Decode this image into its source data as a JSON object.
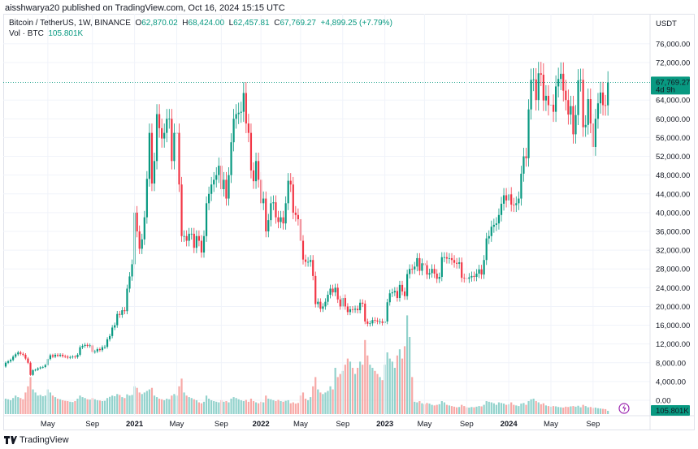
{
  "header": {
    "published": "aisshwarya20 published on TradingView.com, Oct 16, 2024 15:15 UTC"
  },
  "legend": {
    "symbol": "Bitcoin / TetherUS, 1W, BINANCE",
    "o_label": "O",
    "o": "62,870.02",
    "h_label": "H",
    "h": "68,424.00",
    "l_label": "L",
    "l": "62,457.81",
    "c_label": "C",
    "c": "67,769.27",
    "change": "+4,899.25 (+7.79%)",
    "vol_label": "Vol · BTC",
    "vol": "105.801K"
  },
  "price_axis": {
    "currency": "USDT",
    "ticks": [
      "76,000.00",
      "72,000.00",
      "64,000.00",
      "60,000.00",
      "56,000.00",
      "52,000.00",
      "48,000.00",
      "44,000.00",
      "40,000.00",
      "36,000.00",
      "32,000.00",
      "28,000.00",
      "24,000.00",
      "20,000.00",
      "16,000.00",
      "12,000.00",
      "8,000.00",
      "4,000.00",
      "0.00"
    ],
    "last_price": "67,769.27",
    "countdown": "4d 9h",
    "last_volume": "105.801K"
  },
  "time_axis": {
    "ticks": [
      {
        "label": "May",
        "month": "2020-05",
        "bold": false
      },
      {
        "label": "Sep",
        "month": "2020-09",
        "bold": false
      },
      {
        "label": "2021",
        "month": "2021-01",
        "bold": true
      },
      {
        "label": "May",
        "month": "2021-05",
        "bold": false
      },
      {
        "label": "Sep",
        "month": "2021-09",
        "bold": false
      },
      {
        "label": "2022",
        "month": "2022-01",
        "bold": true
      },
      {
        "label": "May",
        "month": "2022-05",
        "bold": false
      },
      {
        "label": "Sep",
        "month": "2022-09",
        "bold": false
      },
      {
        "label": "2023",
        "month": "2023-01",
        "bold": true
      },
      {
        "label": "May",
        "month": "2023-05",
        "bold": false
      },
      {
        "label": "Sep",
        "month": "2023-09",
        "bold": false
      },
      {
        "label": "2024",
        "month": "2024-01",
        "bold": true
      },
      {
        "label": "May",
        "month": "2024-05",
        "bold": false
      },
      {
        "label": "Sep",
        "month": "2024-09",
        "bold": false
      }
    ]
  },
  "colors": {
    "up": "#089981",
    "down": "#f23645",
    "up_vol": "#92d2cc",
    "down_vol": "#f7a9a7",
    "grid": "#f0f3fa",
    "accent": "#089981",
    "lightning": "#9c27b0"
  },
  "footer": {
    "brand": "TradingView",
    "logo_icon": "tradingview-logo"
  },
  "chart_data": {
    "type": "candlestick",
    "symbol": "BTCUSDT",
    "interval": "1W",
    "ylim": [
      0,
      78000
    ],
    "grid": true,
    "weekly_close_k_usdt": {
      "2020-01": [
        8.0,
        8.3,
        8.6,
        9.3
      ],
      "2020-02": [
        9.8,
        10.2,
        9.9,
        9.7
      ],
      "2020-03": [
        8.9,
        8.0,
        5.4,
        6.4,
        6.5
      ],
      "2020-04": [
        6.8,
        7.0,
        7.1,
        7.5
      ],
      "2020-05": [
        8.8,
        9.6,
        9.3,
        9.7
      ],
      "2020-06": [
        9.5,
        9.7,
        9.4,
        9.3,
        9.1
      ],
      "2020-07": [
        9.2,
        9.3,
        9.2,
        9.7
      ],
      "2020-08": [
        11.3,
        11.6,
        11.8,
        11.6,
        11.7
      ],
      "2020-09": [
        10.3,
        10.4,
        10.9,
        10.7
      ],
      "2020-10": [
        11.3,
        11.4,
        13.0,
        13.7
      ],
      "2020-11": [
        15.5,
        16.0,
        18.4,
        18.2
      ],
      "2020-12": [
        19.2,
        19.0,
        23.8,
        26.4,
        29.0
      ],
      "2021-01": [
        40.0,
        36.0,
        32.3,
        34.3
      ],
      "2021-02": [
        39.0,
        47.2,
        57.0,
        46.2
      ],
      "2021-03": [
        51.0,
        61.0,
        58.0,
        55.8,
        57.0
      ],
      "2021-04": [
        60.0,
        60.0,
        51.0,
        57.0
      ],
      "2021-05": [
        57.0,
        46.0,
        35.0,
        35.0,
        34.0
      ],
      "2021-06": [
        35.5,
        35.5,
        32.5,
        35.0
      ],
      "2021-07": [
        34.0,
        31.5,
        35.0,
        42.0
      ],
      "2021-08": [
        44.0,
        46.0,
        47.0,
        48.0,
        50.0
      ],
      "2021-09": [
        45.0,
        47.0,
        43.0,
        48.0
      ],
      "2021-10": [
        55.0,
        60.0,
        61.0,
        61.3
      ],
      "2021-11": [
        61.5,
        65.5,
        59.0,
        57.0
      ],
      "2021-12": [
        49.0,
        46.7,
        51.0,
        47.0
      ],
      "2022-01": [
        42.0,
        43.0,
        36.0,
        38.4
      ],
      "2022-02": [
        42.0,
        42.2,
        39.0,
        38.0
      ],
      "2022-03": [
        39.0,
        37.7,
        42.0,
        46.8
      ],
      "2022-04": [
        46.0,
        40.0,
        39.5,
        38.6
      ],
      "2022-05": [
        34.0,
        30.0,
        29.5,
        29.5
      ],
      "2022-06": [
        29.9,
        26.5,
        20.5,
        21.0,
        19.5
      ],
      "2022-07": [
        20.0,
        21.0,
        22.5,
        23.8
      ],
      "2022-08": [
        23.0,
        24.0,
        21.5,
        20.0
      ],
      "2022-09": [
        21.8,
        20.0,
        18.8,
        19.4,
        19.3
      ],
      "2022-10": [
        19.5,
        19.2,
        20.8,
        20.6
      ],
      "2022-11": [
        16.8,
        16.3,
        16.4,
        17.1
      ],
      "2022-12": [
        17.0,
        16.8,
        16.8,
        16.5
      ],
      "2023-01": [
        16.8,
        20.9,
        22.8,
        23.0
      ],
      "2023-02": [
        23.3,
        21.8,
        24.6,
        23.2
      ],
      "2023-03": [
        22.2,
        26.9,
        28.0,
        27.9
      ],
      "2023-04": [
        28.5,
        30.3,
        27.6,
        29.2
      ],
      "2023-05": [
        28.8,
        26.8,
        27.1,
        28.0
      ],
      "2023-06": [
        27.0,
        25.9,
        26.3,
        30.5,
        30.5
      ],
      "2023-07": [
        30.2,
        30.3,
        29.9,
        29.3
      ],
      "2023-08": [
        29.1,
        29.4,
        26.1,
        26.0
      ],
      "2023-09": [
        25.9,
        26.2,
        26.5,
        26.3,
        27.0
      ],
      "2023-10": [
        27.9,
        26.8,
        29.9,
        34.5
      ],
      "2023-11": [
        35.0,
        37.0,
        37.4,
        37.7
      ],
      "2023-12": [
        39.5,
        41.9,
        43.7,
        42.6
      ],
      "2024-01": [
        43.9,
        41.7,
        41.6,
        42.0
      ],
      "2024-02": [
        43.0,
        48.3,
        52.0,
        51.6,
        62.0
      ],
      "2024-03": [
        68.3,
        68.4,
        64.0,
        69.7
      ],
      "2024-04": [
        69.4,
        63.9,
        64.9,
        62.9
      ],
      "2024-05": [
        63.0,
        61.5,
        66.9,
        68.5
      ],
      "2024-06": [
        69.6,
        66.0,
        64.0,
        60.9,
        62.7
      ],
      "2024-07": [
        56.7,
        60.8,
        68.2,
        68.3
      ],
      "2024-08": [
        58.2,
        58.7,
        64.2,
        59.0
      ],
      "2024-09": [
        54.0,
        60.0,
        63.3,
        65.6,
        62.9
      ],
      "2024-10": [
        62.87,
        67.769
      ]
    },
    "weekly_volume_k_btc": {
      "2020-01": [
        500,
        480,
        450,
        520
      ],
      "2020-02": [
        600,
        550,
        520,
        480
      ],
      "2020-03": [
        700,
        900,
        1200,
        800,
        700
      ],
      "2020-04": [
        600,
        620,
        580,
        600
      ],
      "2020-05": [
        800,
        700,
        600,
        550
      ],
      "2020-06": [
        500,
        480,
        450,
        430,
        420
      ],
      "2020-07": [
        400,
        390,
        420,
        500
      ],
      "2020-08": [
        600,
        550,
        520,
        480,
        470
      ],
      "2020-09": [
        520,
        480,
        450,
        440
      ],
      "2020-10": [
        420,
        430,
        520,
        560
      ],
      "2020-11": [
        600,
        580,
        650,
        620
      ],
      "2020-12": [
        550,
        520,
        640,
        600,
        620
      ],
      "2021-01": [
        900,
        850,
        700,
        650
      ],
      "2021-02": [
        700,
        750,
        800,
        850
      ],
      "2021-03": [
        600,
        550,
        500,
        480,
        450
      ],
      "2021-04": [
        500,
        480,
        600,
        650
      ],
      "2021-05": [
        600,
        900,
        1150,
        700,
        600
      ],
      "2021-06": [
        550,
        520,
        480,
        450
      ],
      "2021-07": [
        380,
        350,
        400,
        600
      ],
      "2021-08": [
        500,
        450,
        420,
        400,
        380
      ],
      "2021-09": [
        450,
        400,
        420,
        380
      ],
      "2021-10": [
        500,
        550,
        520,
        480
      ],
      "2021-11": [
        450,
        420,
        460,
        400
      ],
      "2021-12": [
        500,
        420,
        380,
        350
      ],
      "2022-01": [
        400,
        380,
        600,
        500
      ],
      "2022-02": [
        480,
        450,
        420,
        460
      ],
      "2022-03": [
        420,
        400,
        430,
        450
      ],
      "2022-04": [
        350,
        380,
        340,
        360
      ],
      "2022-05": [
        600,
        700,
        500,
        450
      ],
      "2022-06": [
        550,
        900,
        1200,
        800,
        700
      ],
      "2022-07": [
        650,
        700,
        750,
        900
      ],
      "2022-08": [
        800,
        1500,
        1200,
        1300
      ],
      "2022-09": [
        1400,
        1600,
        1800,
        1700,
        1500
      ],
      "2022-10": [
        1300,
        1500,
        1700,
        1600
      ],
      "2022-11": [
        2400,
        1900,
        1600,
        1500
      ],
      "2022-12": [
        1400,
        1300,
        1200,
        1100
      ],
      "2023-01": [
        1600,
        2000,
        1800,
        1700
      ],
      "2023-02": [
        1500,
        1900,
        2100,
        1800
      ],
      "2023-03": [
        2200,
        3200,
        2500,
        1200
      ],
      "2023-04": [
        400,
        380,
        420,
        350
      ],
      "2023-05": [
        320,
        360,
        340,
        300
      ],
      "2023-06": [
        280,
        300,
        320,
        420,
        380
      ],
      "2023-07": [
        300,
        280,
        260,
        240
      ],
      "2023-08": [
        220,
        230,
        300,
        260
      ],
      "2023-09": [
        220,
        210,
        230,
        220,
        240
      ],
      "2023-10": [
        260,
        250,
        300,
        420
      ],
      "2023-11": [
        400,
        380,
        350,
        300
      ],
      "2023-12": [
        380,
        360,
        340,
        300
      ],
      "2024-01": [
        320,
        380,
        300,
        280
      ],
      "2024-02": [
        260,
        340,
        360,
        300,
        420
      ],
      "2024-03": [
        480,
        500,
        420,
        380
      ],
      "2024-04": [
        320,
        350,
        280,
        260
      ],
      "2024-05": [
        240,
        260,
        250,
        230
      ],
      "2024-06": [
        220,
        210,
        240,
        230,
        250
      ],
      "2024-07": [
        260,
        240,
        270,
        220
      ],
      "2024-08": [
        300,
        260,
        220,
        230
      ],
      "2024-09": [
        200,
        210,
        190,
        180,
        170
      ],
      "2024-10": [
        160,
        105.801
      ]
    }
  }
}
